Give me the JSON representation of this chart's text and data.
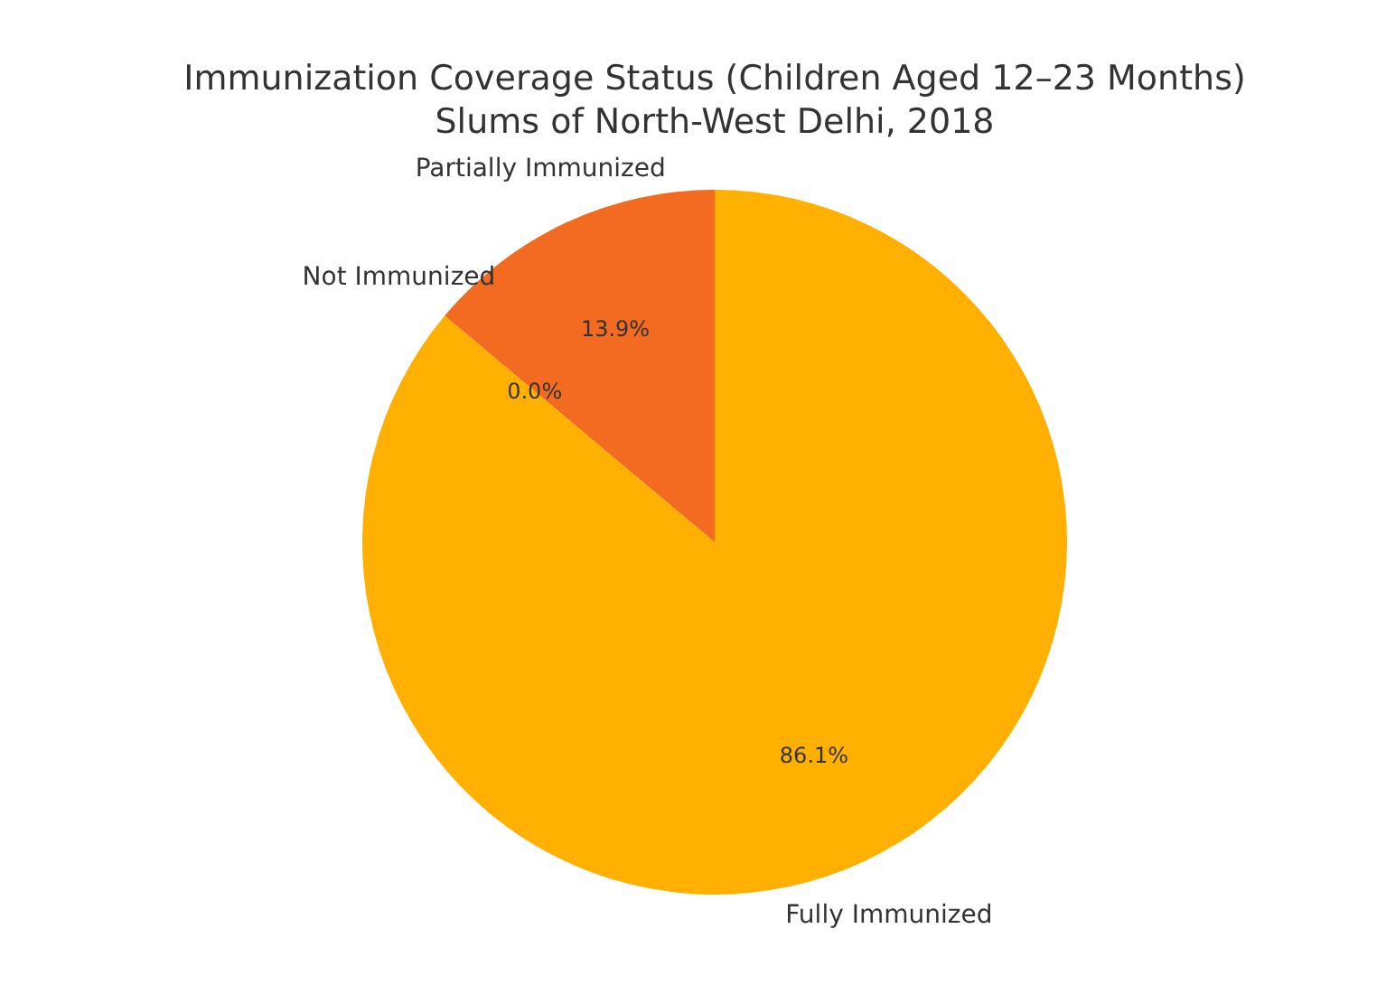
{
  "chart_data": {
    "type": "pie",
    "title": "Immunization Coverage Status (Children Aged 12–23 Months)\nSlums of North-West Delhi, 2018",
    "categories": [
      "Partially Immunized",
      "Not Immunized",
      "Fully Immunized"
    ],
    "values": [
      13.9,
      0.0,
      86.1
    ],
    "colors": [
      "#f26b21",
      "#d94801",
      "#ffb000"
    ],
    "value_labels": [
      "13.9%",
      "0.0%",
      "86.1%"
    ]
  }
}
